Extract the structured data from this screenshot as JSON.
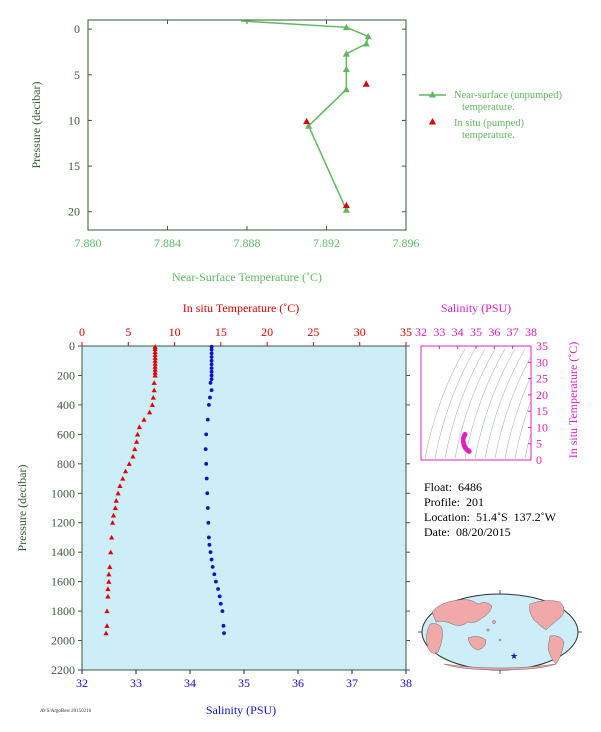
{
  "colors": {
    "axis_green": "#3a5a3a",
    "near_surface_green": "#5fb85f",
    "in_situ_red": "#e00000",
    "salinity_blue": "#1010c8",
    "ts_magenta": "#e020c0",
    "panel_bg": "#cdeef9",
    "land": "#f0a8a8",
    "ocean": "#cdeef9"
  },
  "icons": {
    "float_marker": "star-icon"
  },
  "chart_data": [
    {
      "type": "line",
      "xlabel": "Near-Surface Temperature (˚C)",
      "ylabel": "Pressure (decibar)",
      "xlim": [
        7.88,
        7.896
      ],
      "ylim": [
        22,
        -1
      ],
      "xticks": [
        "7.880",
        "7.884",
        "7.888",
        "7.892",
        "7.896"
      ],
      "yticks": [
        "0",
        "5",
        "10",
        "15",
        "20"
      ],
      "legend": "right",
      "series": [
        {
          "name": "Near-surface (unpumped) temperature.",
          "x": [
            7.8877,
            7.893,
            7.8941,
            7.894,
            7.893,
            7.893,
            7.893,
            7.8911,
            7.893
          ],
          "y": [
            -0.9,
            -0.2,
            0.8,
            1.6,
            2.7,
            4.4,
            6.6,
            10.6,
            19.8
          ]
        },
        {
          "name": "In situ (pumped) temperature.",
          "x": [
            7.894,
            7.891,
            7.893
          ],
          "y": [
            6.0,
            10.1,
            19.3
          ]
        }
      ]
    },
    {
      "type": "scatter",
      "ylabel": "Pressure (decibar)",
      "ylim": [
        2200,
        0
      ],
      "yticks": [
        "0",
        "200",
        "400",
        "600",
        "800",
        "1000",
        "1200",
        "1400",
        "1600",
        "1800",
        "2000",
        "2200"
      ],
      "top_axis": {
        "label": "In situ Temperature (˚C)",
        "range": [
          0,
          35
        ],
        "ticks": [
          "0",
          "5",
          "10",
          "15",
          "20",
          "25",
          "30",
          "35"
        ]
      },
      "bottom_axis": {
        "label": "Salinity (PSU)",
        "range": [
          32,
          38
        ],
        "ticks": [
          "32",
          "33",
          "34",
          "35",
          "36",
          "37",
          "38"
        ]
      },
      "series": [
        {
          "name": "In situ Temperature (˚C)",
          "x": [
            7.9,
            7.9,
            7.9,
            7.9,
            7.9,
            7.9,
            7.9,
            7.9,
            7.9,
            7.9,
            7.9,
            7.8,
            7.8,
            7.7,
            7.6,
            7.3,
            6.7,
            6.2,
            6.0,
            5.9,
            5.7,
            5.5,
            5.1,
            4.7,
            4.4,
            4.1,
            3.9,
            3.7,
            3.6,
            3.4,
            3.3,
            3.2,
            3.1,
            3.0,
            2.9,
            2.9,
            2.8,
            2.8,
            2.7,
            2.7,
            2.6
          ],
          "y": [
            5,
            20,
            40,
            60,
            80,
            100,
            120,
            140,
            160,
            180,
            200,
            250,
            300,
            350,
            400,
            450,
            500,
            550,
            600,
            650,
            700,
            750,
            800,
            850,
            900,
            950,
            1000,
            1050,
            1100,
            1150,
            1200,
            1300,
            1400,
            1500,
            1550,
            1600,
            1650,
            1700,
            1800,
            1900,
            1950
          ]
        },
        {
          "name": "Salinity (PSU)",
          "x": [
            34.4,
            34.4,
            34.4,
            34.4,
            34.4,
            34.4,
            34.4,
            34.4,
            34.4,
            34.4,
            34.38,
            34.4,
            34.37,
            34.35,
            34.33,
            34.3,
            34.29,
            34.3,
            34.31,
            34.32,
            34.33,
            34.34,
            34.35,
            34.36,
            34.38,
            34.4,
            34.42,
            34.45,
            34.48,
            34.52,
            34.55,
            34.57,
            34.6,
            34.62,
            34.63
          ],
          "y": [
            5,
            25,
            50,
            75,
            100,
            125,
            150,
            175,
            200,
            225,
            250,
            300,
            350,
            400,
            500,
            600,
            700,
            800,
            900,
            1000,
            1100,
            1200,
            1300,
            1350,
            1400,
            1450,
            1500,
            1550,
            1600,
            1650,
            1700,
            1750,
            1800,
            1900,
            1950
          ]
        }
      ]
    },
    {
      "type": "scatter",
      "top_axis": {
        "label": "Salinity (PSU)",
        "range": [
          32,
          38
        ],
        "ticks": [
          "32",
          "33",
          "34",
          "35",
          "36",
          "37",
          "38"
        ]
      },
      "right_axis": {
        "label": "In situ Temperature (˚C)",
        "range": [
          0,
          35
        ],
        "ticks": [
          "0",
          "5",
          "10",
          "15",
          "20",
          "25",
          "30",
          "35"
        ]
      },
      "series": [
        {
          "name": "T-S",
          "x": [
            34.63,
            34.6,
            34.57,
            34.52,
            34.48,
            34.45,
            34.42,
            34.4,
            34.38,
            34.36,
            34.34,
            34.33,
            34.31,
            34.3,
            34.31,
            34.35,
            34.4,
            34.4
          ],
          "y": [
            2.6,
            2.8,
            2.9,
            3.1,
            3.3,
            3.5,
            3.7,
            3.9,
            4.1,
            4.4,
            4.7,
            5.1,
            5.5,
            6.0,
            6.7,
            7.3,
            7.7,
            7.9
          ]
        }
      ]
    }
  ],
  "float_info": {
    "float": "Float:  6486",
    "profile": "Profile:  201",
    "location": "Location:  51.4˚S  137.2˚W",
    "date": "Date:  08/20/2015"
  },
  "footer": "AVS/ArgoBest 20150216",
  "map": {
    "marker_lat": -51.4,
    "marker_lon": -137.2
  }
}
